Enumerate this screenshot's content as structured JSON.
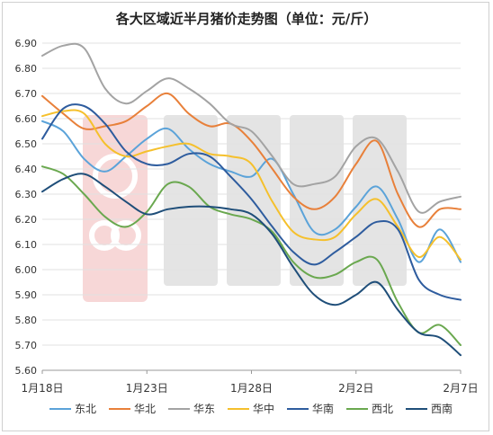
{
  "chart_data": {
    "type": "line",
    "title": "各大区域近半月猪价走势图（单位：元/斤）",
    "xlabel": "",
    "ylabel": "",
    "ylim": [
      5.6,
      6.9
    ],
    "yticks": [
      "5.60",
      "5.70",
      "5.80",
      "5.90",
      "6.00",
      "6.10",
      "6.20",
      "6.30",
      "6.40",
      "6.50",
      "6.60",
      "6.70",
      "6.80",
      "6.90"
    ],
    "x_labels": [
      "1月18日",
      "1月23日",
      "1月28日",
      "2月2日",
      "2月7日"
    ],
    "x_label_index": [
      0,
      5,
      10,
      15,
      20
    ],
    "n_points": 21,
    "grid": "horizontal",
    "legend_position": "bottom",
    "series": [
      {
        "name": "东北",
        "color": "#5ba3d9",
        "values": [
          6.59,
          6.55,
          6.44,
          6.39,
          6.45,
          6.52,
          6.56,
          6.48,
          6.42,
          6.39,
          6.37,
          6.44,
          6.3,
          6.15,
          6.16,
          6.25,
          6.33,
          6.2,
          6.03,
          6.16,
          6.03
        ]
      },
      {
        "name": "华北",
        "color": "#e8803a",
        "values": [
          6.69,
          6.62,
          6.56,
          6.57,
          6.59,
          6.65,
          6.7,
          6.62,
          6.57,
          6.58,
          6.51,
          6.4,
          6.29,
          6.24,
          6.29,
          6.42,
          6.51,
          6.3,
          6.17,
          6.24,
          6.24
        ]
      },
      {
        "name": "华东",
        "color": "#a3a3a3",
        "values": [
          6.85,
          6.89,
          6.88,
          6.72,
          6.66,
          6.71,
          6.76,
          6.72,
          6.66,
          6.58,
          6.55,
          6.45,
          6.34,
          6.34,
          6.37,
          6.49,
          6.52,
          6.39,
          6.23,
          6.27,
          6.29
        ]
      },
      {
        "name": "华中",
        "color": "#f5c02c",
        "values": [
          6.61,
          6.63,
          6.62,
          6.5,
          6.45,
          6.47,
          6.49,
          6.5,
          6.46,
          6.45,
          6.42,
          6.27,
          6.15,
          6.12,
          6.13,
          6.22,
          6.28,
          6.17,
          6.05,
          6.13,
          6.04
        ]
      },
      {
        "name": "华南",
        "color": "#2e5c9e",
        "values": [
          6.52,
          6.64,
          6.65,
          6.58,
          6.47,
          6.42,
          6.42,
          6.46,
          6.45,
          6.37,
          6.28,
          6.17,
          6.07,
          6.02,
          6.07,
          6.13,
          6.19,
          6.16,
          5.96,
          5.9,
          5.88
        ]
      },
      {
        "name": "西北",
        "color": "#6aa84f",
        "values": [
          6.41,
          6.38,
          6.3,
          6.21,
          6.17,
          6.23,
          6.34,
          6.33,
          6.25,
          6.22,
          6.2,
          6.15,
          6.03,
          5.97,
          5.98,
          6.03,
          6.04,
          5.87,
          5.75,
          5.78,
          5.7
        ]
      },
      {
        "name": "西南",
        "color": "#1f4e79",
        "values": [
          6.31,
          6.36,
          6.38,
          6.33,
          6.27,
          6.22,
          6.24,
          6.25,
          6.25,
          6.24,
          6.22,
          6.14,
          6.01,
          5.9,
          5.86,
          5.9,
          5.95,
          5.84,
          5.75,
          5.73,
          5.66
        ]
      }
    ]
  }
}
